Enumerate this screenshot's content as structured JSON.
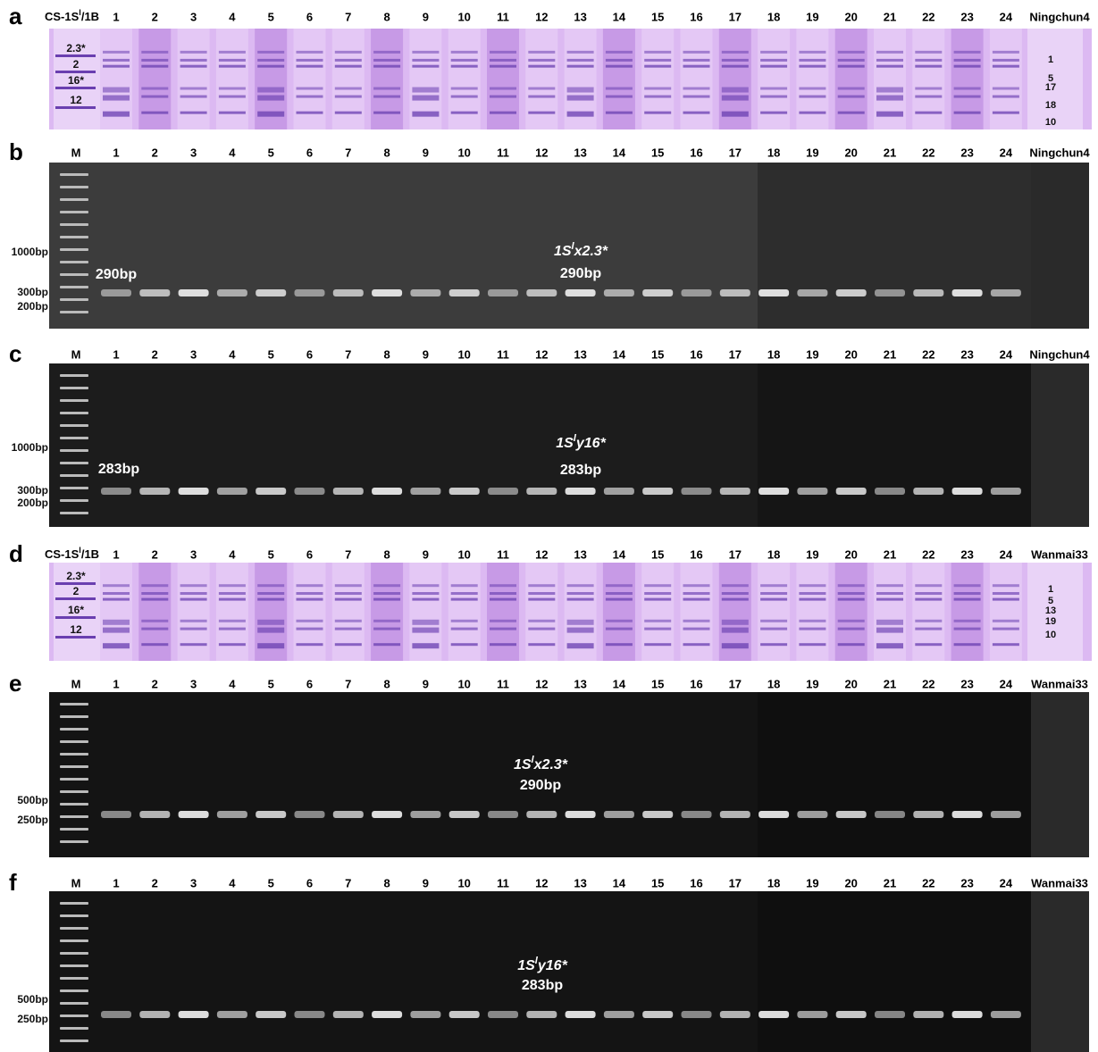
{
  "panels": [
    {
      "letter": "a",
      "kind": "sds",
      "left_label": [
        "CS-1S",
        "l",
        "/1B"
      ],
      "lanes": [
        1,
        2,
        3,
        4,
        5,
        6,
        7,
        8,
        9,
        10,
        11,
        12,
        13,
        14,
        15,
        16,
        17,
        18,
        19,
        20,
        21,
        22,
        23,
        24
      ],
      "right_label": "Ningchun4",
      "left_bands": [
        "2.3*",
        "2",
        "16*",
        "12"
      ],
      "right_bands": [
        "1",
        "5",
        "17",
        "18",
        "10"
      ]
    },
    {
      "letter": "b",
      "kind": "dna",
      "left_label": "M",
      "lanes": [
        1,
        2,
        3,
        4,
        5,
        6,
        7,
        8,
        9,
        10,
        11,
        12,
        13,
        14,
        15,
        16,
        17,
        18,
        19,
        20,
        21,
        22,
        23,
        24
      ],
      "right_label": "Ningchun4",
      "markers": [
        "1000bp",
        "300bp",
        "200bp"
      ],
      "annotation": [
        "1S",
        "l",
        "x2.3*"
      ],
      "size": "290bp",
      "side_size": "290bp"
    },
    {
      "letter": "c",
      "kind": "dna",
      "left_label": "M",
      "lanes": [
        1,
        2,
        3,
        4,
        5,
        6,
        7,
        8,
        9,
        10,
        11,
        12,
        13,
        14,
        15,
        16,
        17,
        18,
        19,
        20,
        21,
        22,
        23,
        24
      ],
      "right_label": "Ningchun4",
      "markers": [
        "1000bp",
        "300bp",
        "200bp"
      ],
      "annotation": [
        "1S",
        "l",
        "y16*"
      ],
      "size": "283bp",
      "side_size": "283bp"
    },
    {
      "letter": "d",
      "kind": "sds",
      "left_label": [
        "CS-1S",
        "l",
        "/1B"
      ],
      "lanes": [
        1,
        2,
        3,
        4,
        5,
        6,
        7,
        8,
        9,
        10,
        11,
        12,
        13,
        14,
        15,
        16,
        17,
        18,
        19,
        20,
        21,
        22,
        23,
        24
      ],
      "right_label": "Wanmai33",
      "left_bands": [
        "2.3*",
        "2",
        "16*",
        "12"
      ],
      "right_bands": [
        "1",
        "5",
        "13",
        "19",
        "10"
      ]
    },
    {
      "letter": "e",
      "kind": "dna",
      "left_label": "M",
      "lanes": [
        1,
        2,
        3,
        4,
        5,
        6,
        7,
        8,
        9,
        10,
        11,
        12,
        13,
        14,
        15,
        16,
        17,
        18,
        19,
        20,
        21,
        22,
        23,
        24
      ],
      "right_label": "Wanmai33",
      "markers": [
        "500bp",
        "250bp"
      ],
      "annotation": [
        "1S",
        "l",
        "x2.3*"
      ],
      "size": "290bp"
    },
    {
      "letter": "f",
      "kind": "dna",
      "left_label": "M",
      "lanes": [
        1,
        2,
        3,
        4,
        5,
        6,
        7,
        8,
        9,
        10,
        11,
        12,
        13,
        14,
        15,
        16,
        17,
        18,
        19,
        20,
        21,
        22,
        23,
        24
      ],
      "right_label": "Wanmai33",
      "markers": [
        "500bp",
        "250bp"
      ],
      "annotation": [
        "1S",
        "l",
        "y16*"
      ],
      "size": "283bp"
    }
  ]
}
